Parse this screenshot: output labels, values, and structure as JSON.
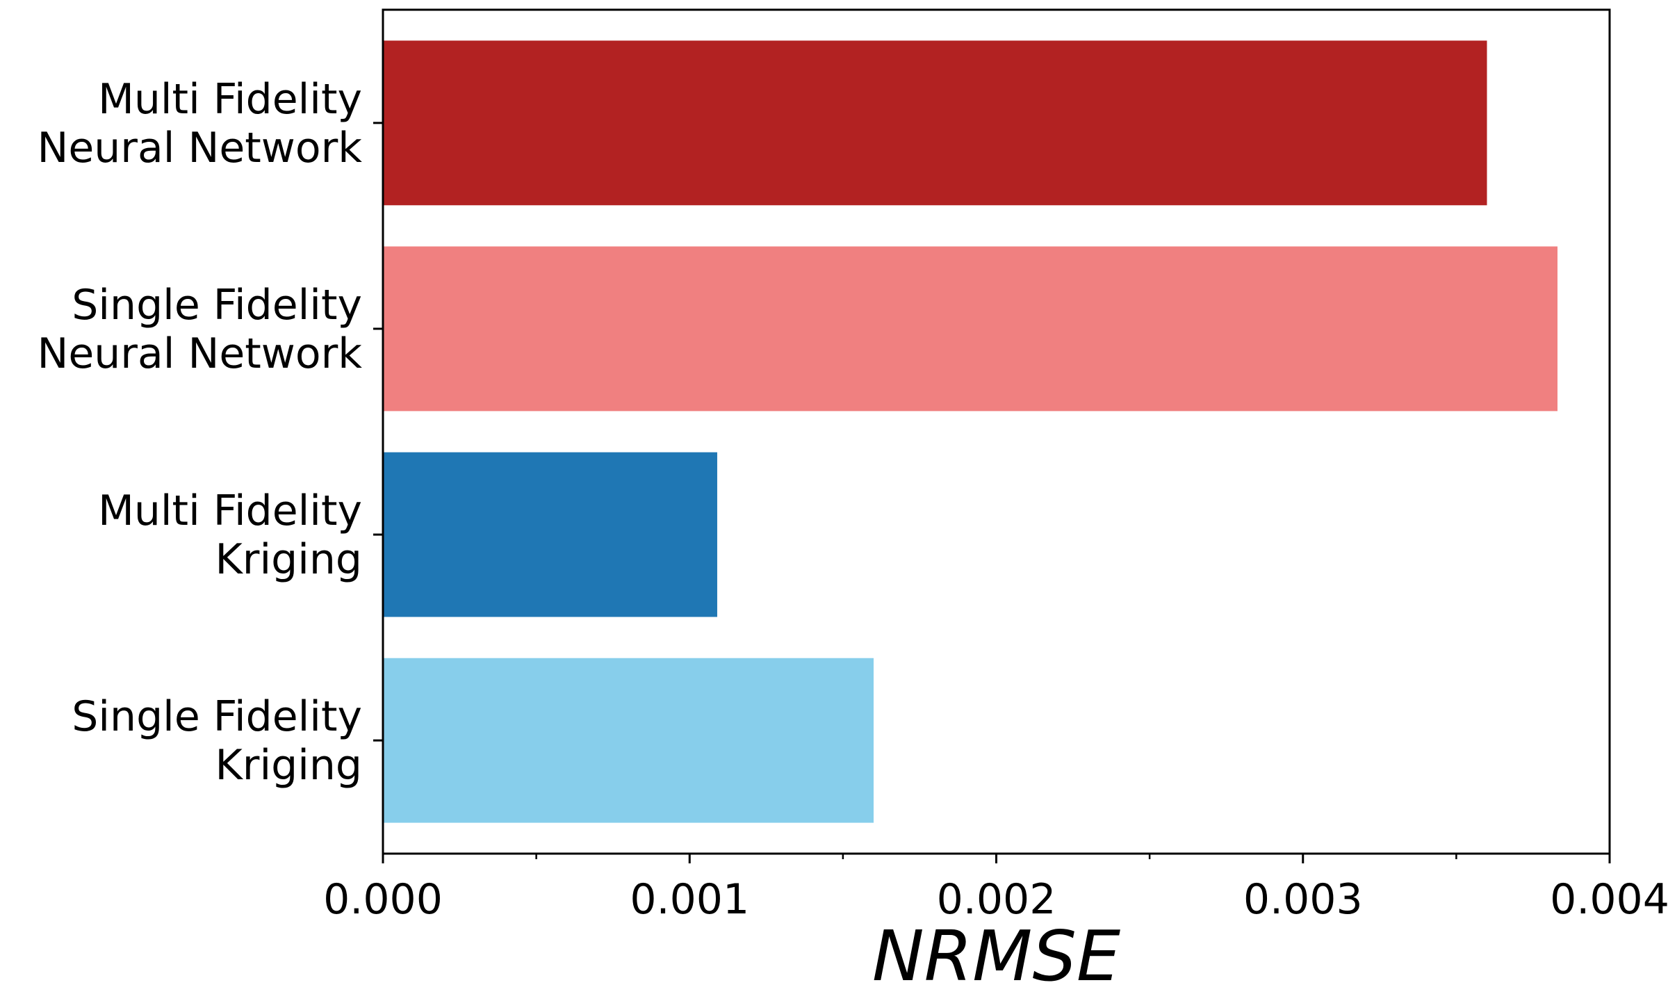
{
  "chart_data": {
    "type": "bar",
    "orientation": "horizontal",
    "categories": [
      [
        "Multi Fidelity",
        "Neural Network"
      ],
      [
        "Single Fidelity",
        "Neural Network"
      ],
      [
        "Multi Fidelity",
        "Kriging"
      ],
      [
        "Single Fidelity",
        "Kriging"
      ]
    ],
    "values": [
      0.0036,
      0.00383,
      0.00109,
      0.0016
    ],
    "colors": [
      "#b22222",
      "#f08080",
      "#1f77b4",
      "#87ceeb"
    ],
    "title": "",
    "xlabel": "NRMSE",
    "ylabel": "",
    "xlim": [
      0,
      0.004
    ],
    "xticks": [
      0,
      0.001,
      0.002,
      0.003,
      0.004
    ],
    "xtick_labels": [
      "0.000",
      "0.001",
      "0.002",
      "0.003",
      "0.004"
    ],
    "grid": false,
    "legend": "none"
  }
}
